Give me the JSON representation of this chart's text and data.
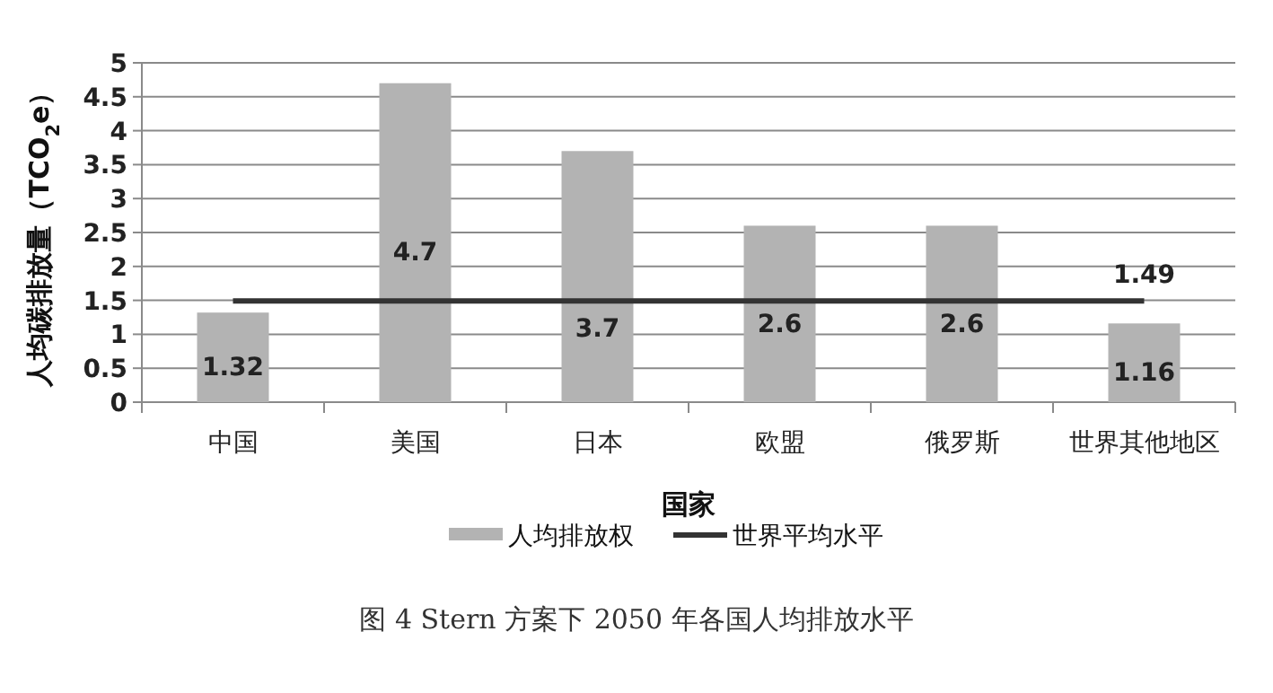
{
  "chart_data": {
    "type": "bar",
    "ylabel": "人均碳排放量（TCO$_{2}$e）",
    "xlabel": "国家",
    "categories": [
      "中国",
      "美国",
      "日本",
      "欧盟",
      "俄罗斯",
      "世界其他地区"
    ],
    "series": [
      {
        "name": "人均排放权",
        "color": "#b3b3b3",
        "values": [
          1.32,
          4.7,
          3.7,
          2.6,
          2.6,
          1.16
        ],
        "data_labels": true
      },
      {
        "name": "世界平均水平",
        "type": "line",
        "color": "#333333",
        "values": [
          1.49,
          1.49,
          1.49,
          1.49,
          1.49,
          1.49
        ],
        "value_labels": [
          null,
          null,
          null,
          null,
          null,
          "1.49"
        ]
      }
    ],
    "ylim": [
      0,
      5
    ],
    "yticks": [
      0,
      0.5,
      1,
      1.5,
      2,
      2.5,
      3,
      3.5,
      4,
      4.5,
      5
    ],
    "grid": "y",
    "legend": "bottom",
    "marker": "none",
    "line_style": "solid",
    "annotations": [
      "图 4 Stern 方案下 2050 年各国人均排放水平"
    ]
  }
}
